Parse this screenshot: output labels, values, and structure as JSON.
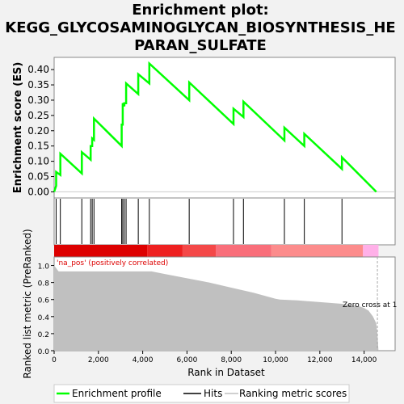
{
  "chart_data": {
    "type": "line",
    "title_lines": [
      "Enrichment plot:",
      "KEGG_GLYCOSAMINOGLYCAN_BIOSYNTHESIS_HE",
      "PARAN_SULFATE"
    ],
    "top_panel": {
      "ylabel": "Enrichment score (ES)",
      "ylim": [
        -0.02,
        0.44
      ],
      "yticks": [
        "0.00",
        "0.05",
        "0.10",
        "0.15",
        "0.20",
        "0.25",
        "0.30",
        "0.35",
        "0.40"
      ],
      "series_name": "Enrichment profile",
      "line_color": "#00ff00",
      "x": [
        0,
        90,
        90,
        280,
        280,
        1250,
        1250,
        1650,
        1650,
        1720,
        1720,
        1800,
        1800,
        3050,
        3050,
        3100,
        3100,
        3170,
        3170,
        3250,
        3250,
        3800,
        3800,
        4300,
        4300,
        6100,
        6100,
        8100,
        8100,
        8550,
        8550,
        10400,
        10400,
        11300,
        11300,
        13000,
        13000,
        14550
      ],
      "es": [
        0.0,
        0.02,
        0.065,
        0.055,
        0.125,
        0.06,
        0.13,
        0.105,
        0.15,
        0.15,
        0.175,
        0.17,
        0.24,
        0.15,
        0.22,
        0.22,
        0.29,
        0.28,
        0.29,
        0.29,
        0.355,
        0.32,
        0.385,
        0.355,
        0.42,
        0.3,
        0.358,
        0.222,
        0.272,
        0.245,
        0.295,
        0.168,
        0.21,
        0.15,
        0.19,
        0.075,
        0.113,
        0.0
      ]
    },
    "hits_panel": {
      "series_name": "Hits",
      "hit_positions": [
        90,
        280,
        1250,
        1650,
        1720,
        1800,
        3050,
        3100,
        3170,
        3250,
        3800,
        4300,
        6100,
        8100,
        8550,
        10400,
        11300,
        13000
      ]
    },
    "heatmap_bar": {
      "segments": [
        {
          "start": 0,
          "end": 4200,
          "color": "#dd0000"
        },
        {
          "start": 4200,
          "end": 5800,
          "color": "#ee2020"
        },
        {
          "start": 5800,
          "end": 7300,
          "color": "#f44848"
        },
        {
          "start": 7300,
          "end": 9800,
          "color": "#f96e7a"
        },
        {
          "start": 9800,
          "end": 13950,
          "color": "#fc8c8c"
        },
        {
          "start": 13950,
          "end": 14650,
          "color": "#ffb0e8"
        }
      ]
    },
    "bottom_panel": {
      "ylabel": "Ranked list metric (PreRanked)",
      "xlabel": "Rank in Dataset",
      "ylim": [
        0,
        1.1
      ],
      "yticks": [
        "0.0",
        "0.2",
        "0.4",
        "0.6",
        "0.8",
        "1.0"
      ],
      "xticks": [
        "0",
        "2,000",
        "4,000",
        "6,000",
        "8,000",
        "10,000",
        "12,000",
        "14,000"
      ],
      "xlim": [
        0,
        15400
      ],
      "series_name": "Ranking metric scores",
      "fill_color": "#c0c0c0",
      "x": [
        0,
        200,
        1000,
        2000,
        4400,
        5000,
        6000,
        7000,
        8000,
        9000,
        10000,
        10200,
        11000,
        12000,
        13000,
        13800,
        14000,
        14200,
        14400,
        14550,
        14600,
        14650
      ],
      "metric": [
        1.0,
        0.93,
        0.93,
        0.93,
        0.93,
        0.9,
        0.85,
        0.8,
        0.74,
        0.68,
        0.61,
        0.6,
        0.59,
        0.57,
        0.55,
        0.52,
        0.5,
        0.47,
        0.4,
        0.32,
        0.2,
        0.0
      ],
      "pos_label": "'na_pos' (positively correlated)",
      "zero_cross_label": "Zero cross at 1",
      "zero_cross_x": 14600
    },
    "legend": [
      "Enrichment profile",
      "Hits",
      "Ranking metric scores"
    ]
  }
}
